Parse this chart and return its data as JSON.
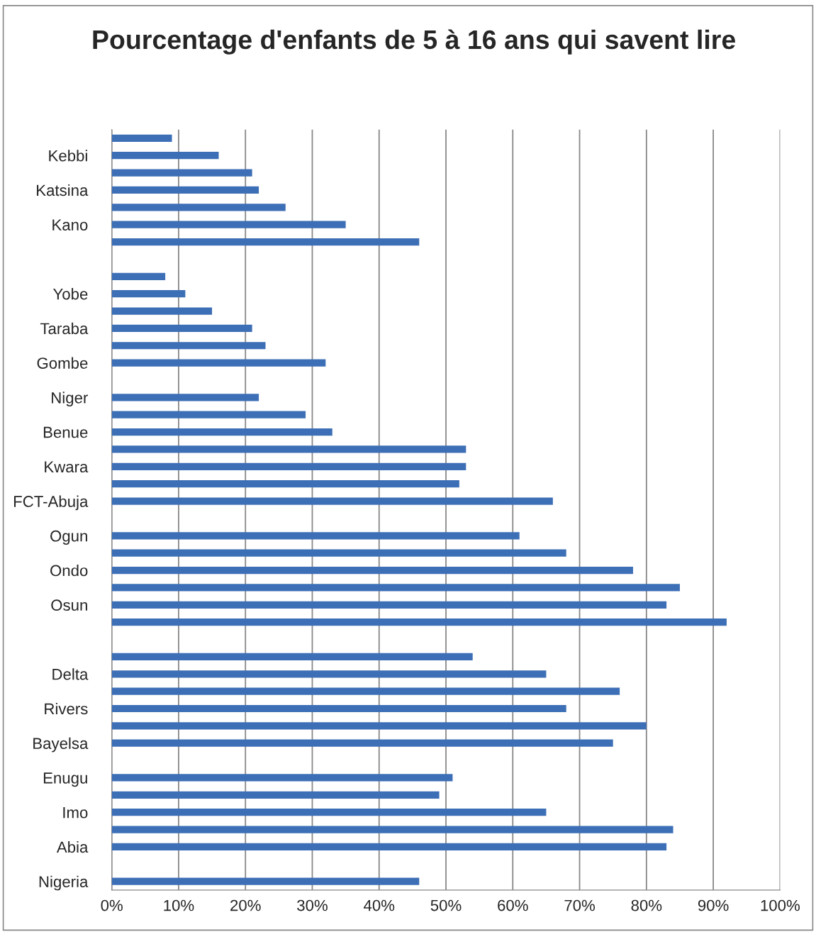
{
  "chart_data": {
    "type": "bar",
    "orientation": "horizontal",
    "title": "Pourcentage d'enfants de 5 à 16 ans qui savent lire",
    "categories": [
      null,
      "Kebbi",
      null,
      "Katsina",
      null,
      "Kano",
      null,
      null,
      null,
      "Yobe",
      null,
      "Taraba",
      null,
      "Gombe",
      null,
      "Niger",
      null,
      "Benue",
      null,
      "Kwara",
      null,
      "FCT-Abuja",
      null,
      "Ogun",
      null,
      "Ondo",
      null,
      "Osun",
      null,
      null,
      null,
      "Delta",
      null,
      "Rivers",
      null,
      "Bayelsa",
      null,
      "Enugu",
      null,
      "Imo",
      null,
      "Abia",
      null,
      "Nigeria"
    ],
    "values": [
      9,
      16,
      21,
      22,
      26,
      35,
      46,
      null,
      8,
      11,
      15,
      21,
      23,
      32,
      null,
      22,
      29,
      33,
      53,
      53,
      52,
      66,
      null,
      61,
      68,
      78,
      85,
      83,
      92,
      null,
      54,
      65,
      76,
      68,
      80,
      75,
      null,
      51,
      49,
      65,
      84,
      83,
      null,
      46
    ],
    "color": "#3d6fb6",
    "xlim": [
      0,
      100
    ],
    "xticks": [
      {
        "value": 0,
        "label": "0%"
      },
      {
        "value": 10,
        "label": "10%"
      },
      {
        "value": 20,
        "label": "20%"
      },
      {
        "value": 30,
        "label": "30%"
      },
      {
        "value": 40,
        "label": "40%"
      },
      {
        "value": 50,
        "label": "50%"
      },
      {
        "value": 60,
        "label": "60%"
      },
      {
        "value": 70,
        "label": "70%"
      },
      {
        "value": 80,
        "label": "80%"
      },
      {
        "value": 90,
        "label": "90%"
      },
      {
        "value": 100,
        "label": "100%"
      }
    ],
    "grid": "x",
    "legend": false
  }
}
